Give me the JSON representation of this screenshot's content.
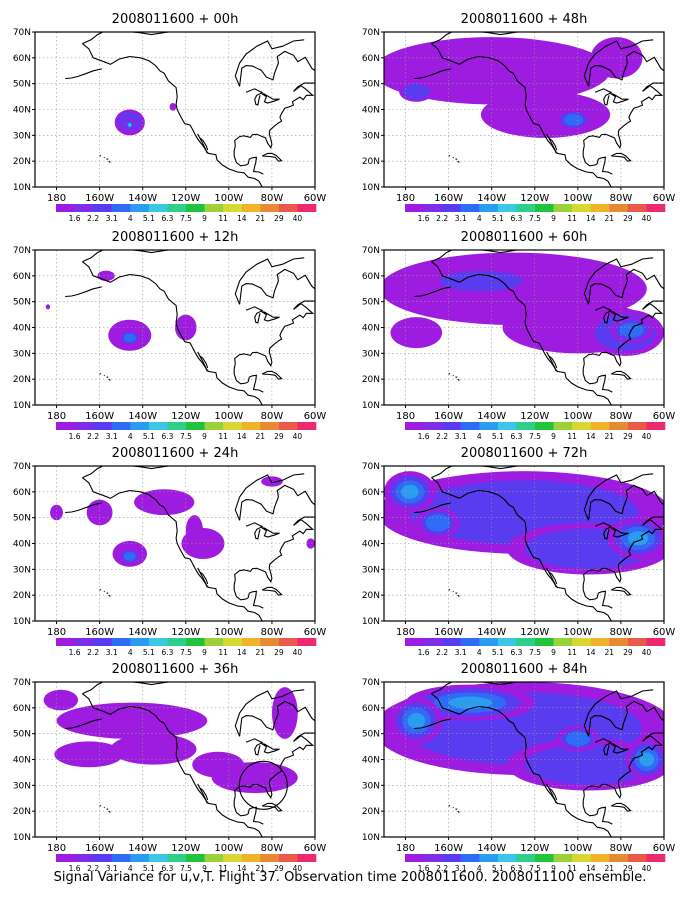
{
  "caption": "Signal Variance for u,v,T. Flight 37. Observation time 2008011600. 2008011100 ensemble.",
  "colorbar": {
    "labels": [
      "1.6",
      "2.2",
      "3.1",
      "4",
      "5.1",
      "6.3",
      "7.5",
      "9",
      "11",
      "14",
      "21",
      "29",
      "40"
    ],
    "colors": [
      "#9e1be0",
      "#7e2ee6",
      "#5a3cf0",
      "#2f6cf5",
      "#2b9cf0",
      "#3dc7e6",
      "#2bd08a",
      "#21c23c",
      "#9bd13a",
      "#d8d834",
      "#efb42c",
      "#e88a34",
      "#e85a4a",
      "#ee2a6e"
    ]
  },
  "axes": {
    "x_ticks": [
      "180",
      "160W",
      "140W",
      "120W",
      "100W",
      "80W",
      "60W"
    ],
    "y_ticks": [
      "10N",
      "20N",
      "30N",
      "40N",
      "50N",
      "60N",
      "70N"
    ]
  },
  "chart_data": [
    {
      "type": "heatmap",
      "title": "2008011600 + 00h",
      "x_range_lon": [
        -190,
        -60
      ],
      "y_range_lat": [
        10,
        70
      ],
      "grid": true,
      "features": [
        {
          "lon": -146,
          "lat": 35,
          "rx": 7,
          "ry": 5,
          "level": 2
        },
        {
          "lon": -146,
          "lat": 34,
          "rx": 4,
          "ry": 3,
          "level": 4
        },
        {
          "lon": -146,
          "lat": 34,
          "rx": 2,
          "ry": 2,
          "level": 5
        },
        {
          "lon": -126,
          "lat": 41,
          "rx": 1.5,
          "ry": 1.5,
          "level": 1
        }
      ]
    },
    {
      "type": "heatmap",
      "title": "2008011600 + 12h",
      "x_range_lon": [
        -190,
        -60
      ],
      "y_range_lat": [
        10,
        70
      ],
      "grid": true,
      "features": [
        {
          "lon": -146,
          "lat": 37,
          "rx": 10,
          "ry": 6,
          "level": 1
        },
        {
          "lon": -146,
          "lat": 36,
          "rx": 5,
          "ry": 3,
          "level": 3
        },
        {
          "lon": -157,
          "lat": 60,
          "rx": 4,
          "ry": 2,
          "level": 1
        },
        {
          "lon": -120,
          "lat": 40,
          "rx": 5,
          "ry": 5,
          "level": 1
        },
        {
          "lon": -184,
          "lat": 48,
          "rx": 1,
          "ry": 1,
          "level": 1
        }
      ]
    },
    {
      "type": "heatmap",
      "title": "2008011600 + 24h",
      "x_range_lon": [
        -190,
        -60
      ],
      "y_range_lat": [
        10,
        70
      ],
      "grid": true,
      "features": [
        {
          "lon": -146,
          "lat": 36,
          "rx": 8,
          "ry": 5,
          "level": 1
        },
        {
          "lon": -146,
          "lat": 35,
          "rx": 5,
          "ry": 3,
          "level": 3
        },
        {
          "lon": -180,
          "lat": 52,
          "rx": 3,
          "ry": 3,
          "level": 1
        },
        {
          "lon": -160,
          "lat": 52,
          "rx": 6,
          "ry": 5,
          "level": 1
        },
        {
          "lon": -130,
          "lat": 56,
          "rx": 14,
          "ry": 5,
          "level": 1
        },
        {
          "lon": -112,
          "lat": 40,
          "rx": 10,
          "ry": 6,
          "level": 1
        },
        {
          "lon": -116,
          "lat": 45,
          "rx": 4,
          "ry": 6,
          "level": 1
        },
        {
          "lon": -80,
          "lat": 64,
          "rx": 5,
          "ry": 2,
          "level": 1
        },
        {
          "lon": -62,
          "lat": 40,
          "rx": 2,
          "ry": 2,
          "level": 1
        }
      ]
    },
    {
      "type": "heatmap",
      "title": "2008011600 + 36h",
      "x_range_lon": [
        -190,
        -60
      ],
      "y_range_lat": [
        10,
        70
      ],
      "grid": true,
      "features": [
        {
          "lon": -145,
          "lat": 55,
          "rx": 35,
          "ry": 7,
          "level": 1
        },
        {
          "lon": -165,
          "lat": 42,
          "rx": 16,
          "ry": 5,
          "level": 1
        },
        {
          "lon": -135,
          "lat": 44,
          "rx": 20,
          "ry": 6,
          "level": 1
        },
        {
          "lon": -105,
          "lat": 38,
          "rx": 12,
          "ry": 5,
          "level": 1
        },
        {
          "lon": -88,
          "lat": 33,
          "rx": 20,
          "ry": 6,
          "level": 1
        },
        {
          "lon": -74,
          "lat": 58,
          "rx": 6,
          "ry": 10,
          "level": 1
        },
        {
          "lon": -178,
          "lat": 63,
          "rx": 8,
          "ry": 4,
          "level": 1
        }
      ]
    },
    {
      "type": "heatmap",
      "title": "2008011600 + 48h",
      "x_range_lon": [
        -190,
        -60
      ],
      "y_range_lat": [
        10,
        70
      ],
      "grid": true,
      "features": [
        {
          "lon": -140,
          "lat": 55,
          "rx": 55,
          "ry": 13,
          "level": 1
        },
        {
          "lon": -115,
          "lat": 38,
          "rx": 30,
          "ry": 9,
          "level": 1
        },
        {
          "lon": -102,
          "lat": 36,
          "rx": 8,
          "ry": 4,
          "level": 3
        },
        {
          "lon": -175,
          "lat": 47,
          "rx": 8,
          "ry": 4,
          "level": 2
        },
        {
          "lon": -82,
          "lat": 60,
          "rx": 12,
          "ry": 8,
          "level": 1
        }
      ]
    },
    {
      "type": "heatmap",
      "title": "2008011600 + 60h",
      "x_range_lon": [
        -190,
        -60
      ],
      "y_range_lat": [
        10,
        70
      ],
      "grid": true,
      "features": [
        {
          "lon": -130,
          "lat": 55,
          "rx": 62,
          "ry": 14,
          "level": 1
        },
        {
          "lon": -100,
          "lat": 40,
          "rx": 35,
          "ry": 10,
          "level": 1
        },
        {
          "lon": -78,
          "lat": 38,
          "rx": 18,
          "ry": 9,
          "level": 2
        },
        {
          "lon": -75,
          "lat": 39,
          "rx": 10,
          "ry": 5,
          "level": 3
        },
        {
          "lon": -145,
          "lat": 58,
          "rx": 25,
          "ry": 5,
          "level": 2
        },
        {
          "lon": -175,
          "lat": 38,
          "rx": 12,
          "ry": 6,
          "level": 1
        }
      ]
    },
    {
      "type": "heatmap",
      "title": "2008011600 + 72h",
      "x_range_lon": [
        -190,
        -60
      ],
      "y_range_lat": [
        10,
        70
      ],
      "grid": true,
      "features": [
        {
          "lon": -125,
          "lat": 52,
          "rx": 68,
          "ry": 16,
          "level": 2
        },
        {
          "lon": -95,
          "lat": 38,
          "rx": 38,
          "ry": 10,
          "level": 2
        },
        {
          "lon": -72,
          "lat": 42,
          "rx": 14,
          "ry": 8,
          "level": 4
        },
        {
          "lon": -178,
          "lat": 60,
          "rx": 12,
          "ry": 8,
          "level": 4
        },
        {
          "lon": -165,
          "lat": 48,
          "rx": 10,
          "ry": 6,
          "level": 3
        }
      ]
    },
    {
      "type": "heatmap",
      "title": "2008011600 + 84h",
      "x_range_lon": [
        -190,
        -60
      ],
      "y_range_lat": [
        10,
        70
      ],
      "grid": true,
      "features": [
        {
          "lon": -125,
          "lat": 52,
          "rx": 70,
          "ry": 18,
          "level": 2
        },
        {
          "lon": -95,
          "lat": 38,
          "rx": 38,
          "ry": 10,
          "level": 2
        },
        {
          "lon": -150,
          "lat": 62,
          "rx": 30,
          "ry": 7,
          "level": 4
        },
        {
          "lon": -175,
          "lat": 55,
          "rx": 12,
          "ry": 9,
          "level": 4
        },
        {
          "lon": -68,
          "lat": 40,
          "rx": 10,
          "ry": 8,
          "level": 4
        },
        {
          "lon": -100,
          "lat": 48,
          "rx": 10,
          "ry": 5,
          "level": 3
        }
      ]
    }
  ]
}
